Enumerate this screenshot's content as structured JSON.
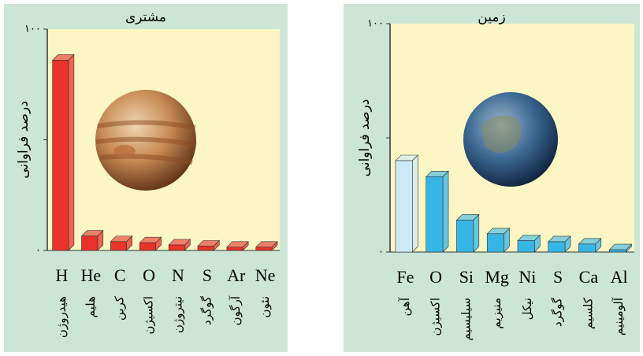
{
  "chart_data": [
    {
      "type": "bar",
      "title": "مشتری",
      "ylabel": "درصد فراوانی",
      "categories": [
        "H",
        "He",
        "C",
        "O",
        "N",
        "S",
        "Ar",
        "Ne"
      ],
      "category_names": [
        "هیدروژن",
        "هلیم",
        "کربن",
        "اکسیژن",
        "نیتروژن",
        "گوگرد",
        "آرگون",
        "نئون"
      ],
      "values": [
        86,
        6.5,
        4,
        3.5,
        2.5,
        2,
        1.5,
        1.5
      ],
      "colors": [
        "#e8322a",
        "#e8322a",
        "#e8322a",
        "#e8322a",
        "#e8322a",
        "#e8322a",
        "#e8322a",
        "#e8322a"
      ],
      "ylim": [
        0,
        100
      ],
      "yticks": [
        {
          "value": 0,
          "label": "۰"
        },
        {
          "value": 100,
          "label": "۱۰۰"
        }
      ]
    },
    {
      "type": "bar",
      "title": "زمین",
      "ylabel": "درصد فراوانی",
      "categories": [
        "Fe",
        "O",
        "Si",
        "Mg",
        "Ni",
        "S",
        "Ca",
        "Al"
      ],
      "category_names": [
        "آهن",
        "اکسیژن",
        "سیلیسیم",
        "منیزیم",
        "نیکل",
        "گوگرد",
        "کلسیم",
        "آلومینیم"
      ],
      "values": [
        40,
        33,
        14,
        8,
        5,
        4.5,
        3.5,
        1
      ],
      "colors": [
        "#cfe9f6",
        "#36b6e6",
        "#36b6e6",
        "#36b6e6",
        "#36b6e6",
        "#36b6e6",
        "#36b6e6",
        "#36b6e6"
      ],
      "ylim": [
        0,
        100
      ],
      "yticks": [
        {
          "value": 0,
          "label": "۰"
        },
        {
          "value": 100,
          "label": "۱۰۰"
        }
      ]
    }
  ]
}
